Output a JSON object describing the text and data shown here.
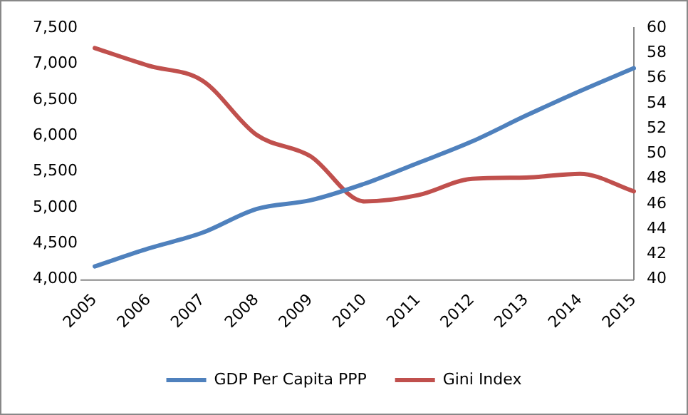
{
  "chart_data": {
    "type": "line",
    "categories": [
      "2005",
      "2006",
      "2007",
      "2008",
      "2009",
      "2010",
      "2011",
      "2012",
      "2013",
      "2014",
      "2015"
    ],
    "series": [
      {
        "name": "GDP Per Capita PPP",
        "color": "#4f81bd",
        "values": [
          4180,
          4430,
          4650,
          4980,
          5100,
          5330,
          5620,
          5920,
          6280,
          6620,
          6940
        ]
      },
      {
        "name": "Gini Index",
        "color": "#c0504d",
        "axis": "y2",
        "values": [
          58.4,
          57.0,
          55.8,
          51.5,
          49.8,
          46.2,
          46.7,
          48.0,
          48.1,
          48.4,
          47.0
        ]
      }
    ],
    "ylim": [
      4000,
      7500
    ],
    "yticks": [
      {
        "value": 4000,
        "label": "4,000"
      },
      {
        "value": 4500,
        "label": "4,500"
      },
      {
        "value": 5000,
        "label": "5,000"
      },
      {
        "value": 5500,
        "label": "5,500"
      },
      {
        "value": 6000,
        "label": "6,000"
      },
      {
        "value": 6500,
        "label": "6,500"
      },
      {
        "value": 7000,
        "label": "7,000"
      },
      {
        "value": 7500,
        "label": "7,500"
      }
    ],
    "y2lim": [
      40,
      60
    ],
    "y2ticks": [
      40,
      42,
      44,
      46,
      48,
      50,
      52,
      54,
      56,
      58,
      60
    ],
    "grid": false,
    "legend": "bottom",
    "marker": "none",
    "line_style": "solid"
  }
}
